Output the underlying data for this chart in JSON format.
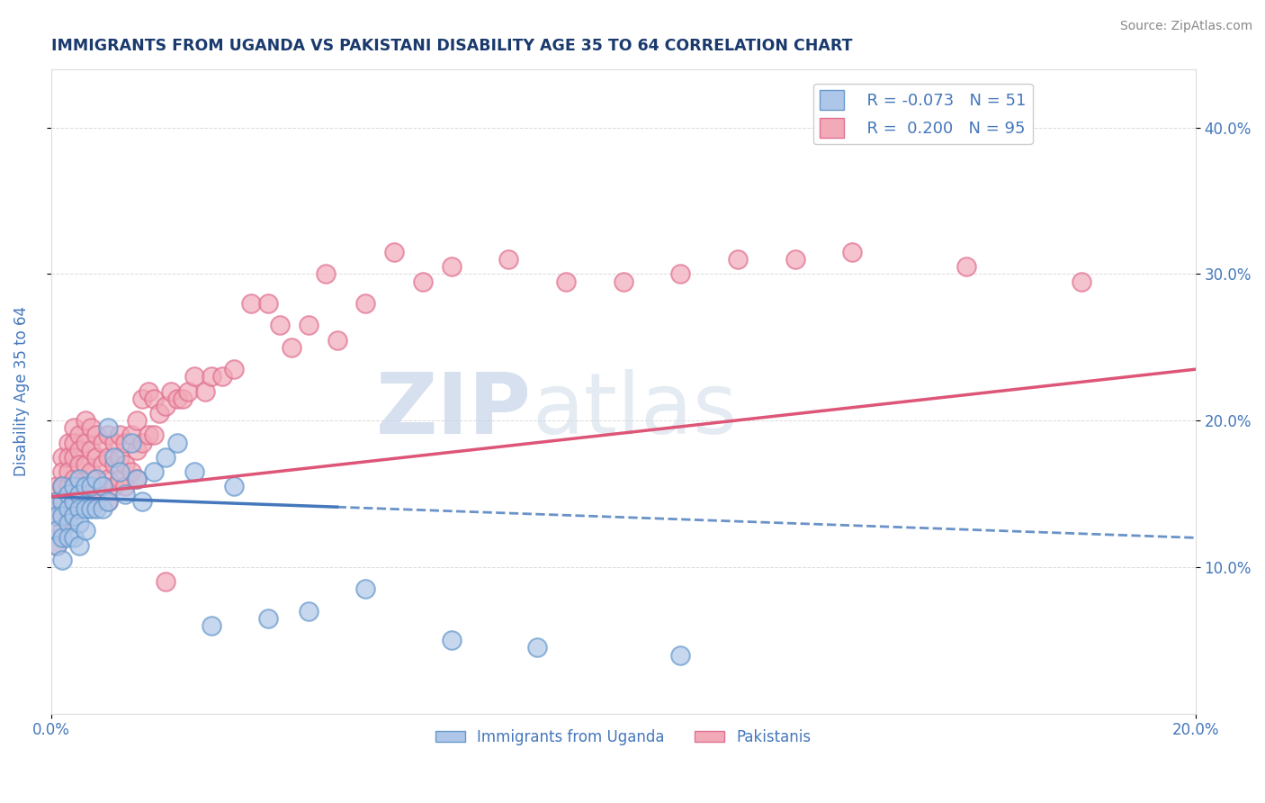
{
  "title": "IMMIGRANTS FROM UGANDA VS PAKISTANI DISABILITY AGE 35 TO 64 CORRELATION CHART",
  "source_text": "Source: ZipAtlas.com",
  "ylabel": "Disability Age 35 to 64",
  "right_yticks": [
    0.1,
    0.2,
    0.3,
    0.4
  ],
  "right_yticklabels": [
    "10.0%",
    "20.0%",
    "30.0%",
    "40.0%"
  ],
  "xmin": 0.0,
  "xmax": 0.2,
  "ymin": 0.0,
  "ymax": 0.44,
  "uganda_R": -0.073,
  "uganda_N": 51,
  "pakistan_R": 0.2,
  "pakistan_N": 95,
  "uganda_color": "#aec6e8",
  "pakistan_color": "#f2aab8",
  "uganda_edge_color": "#6699cc",
  "pakistan_edge_color": "#e07090",
  "uganda_line_color": "#4477bb",
  "pakistan_line_color": "#dd5577",
  "legend_uganda_label": "Immigrants from Uganda",
  "legend_pakistan_label": "Pakistanis",
  "background_color": "#ffffff",
  "grid_color": "#cccccc",
  "watermark_zip_color": "#c8d4e8",
  "watermark_atlas_color": "#b8c8d8",
  "title_color": "#1a3a6e",
  "source_color": "#888888",
  "axis_label_color": "#4477bb",
  "uganda_x": [
    0.001,
    0.001,
    0.001,
    0.001,
    0.002,
    0.002,
    0.002,
    0.002,
    0.002,
    0.003,
    0.003,
    0.003,
    0.003,
    0.004,
    0.004,
    0.004,
    0.004,
    0.005,
    0.005,
    0.005,
    0.005,
    0.005,
    0.006,
    0.006,
    0.006,
    0.007,
    0.007,
    0.008,
    0.008,
    0.009,
    0.009,
    0.01,
    0.01,
    0.011,
    0.012,
    0.013,
    0.014,
    0.015,
    0.016,
    0.018,
    0.02,
    0.022,
    0.025,
    0.028,
    0.032,
    0.038,
    0.045,
    0.055,
    0.07,
    0.085,
    0.11
  ],
  "uganda_y": [
    0.145,
    0.135,
    0.125,
    0.115,
    0.155,
    0.145,
    0.135,
    0.12,
    0.105,
    0.15,
    0.14,
    0.13,
    0.12,
    0.155,
    0.145,
    0.135,
    0.12,
    0.16,
    0.15,
    0.14,
    0.13,
    0.115,
    0.155,
    0.14,
    0.125,
    0.155,
    0.14,
    0.16,
    0.14,
    0.155,
    0.14,
    0.195,
    0.145,
    0.175,
    0.165,
    0.15,
    0.185,
    0.16,
    0.145,
    0.165,
    0.175,
    0.185,
    0.165,
    0.06,
    0.155,
    0.065,
    0.07,
    0.085,
    0.05,
    0.045,
    0.04
  ],
  "pakistan_x": [
    0.001,
    0.001,
    0.001,
    0.001,
    0.002,
    0.002,
    0.002,
    0.002,
    0.002,
    0.003,
    0.003,
    0.003,
    0.003,
    0.003,
    0.004,
    0.004,
    0.004,
    0.004,
    0.004,
    0.005,
    0.005,
    0.005,
    0.005,
    0.005,
    0.006,
    0.006,
    0.006,
    0.006,
    0.007,
    0.007,
    0.007,
    0.007,
    0.008,
    0.008,
    0.008,
    0.008,
    0.009,
    0.009,
    0.009,
    0.01,
    0.01,
    0.01,
    0.01,
    0.011,
    0.011,
    0.011,
    0.012,
    0.012,
    0.012,
    0.013,
    0.013,
    0.013,
    0.014,
    0.014,
    0.015,
    0.015,
    0.015,
    0.016,
    0.016,
    0.017,
    0.017,
    0.018,
    0.018,
    0.019,
    0.02,
    0.021,
    0.022,
    0.023,
    0.024,
    0.025,
    0.027,
    0.028,
    0.03,
    0.032,
    0.035,
    0.038,
    0.04,
    0.042,
    0.045,
    0.048,
    0.05,
    0.055,
    0.06,
    0.065,
    0.07,
    0.08,
    0.09,
    0.1,
    0.11,
    0.12,
    0.13,
    0.14,
    0.16,
    0.18,
    0.02
  ],
  "pakistan_y": [
    0.155,
    0.145,
    0.135,
    0.115,
    0.175,
    0.165,
    0.155,
    0.145,
    0.125,
    0.185,
    0.175,
    0.165,
    0.155,
    0.135,
    0.195,
    0.185,
    0.175,
    0.16,
    0.14,
    0.19,
    0.18,
    0.17,
    0.155,
    0.14,
    0.2,
    0.185,
    0.17,
    0.155,
    0.195,
    0.18,
    0.165,
    0.15,
    0.19,
    0.175,
    0.16,
    0.145,
    0.185,
    0.17,
    0.155,
    0.19,
    0.175,
    0.16,
    0.145,
    0.185,
    0.17,
    0.155,
    0.19,
    0.175,
    0.16,
    0.185,
    0.17,
    0.155,
    0.19,
    0.165,
    0.2,
    0.18,
    0.16,
    0.215,
    0.185,
    0.22,
    0.19,
    0.215,
    0.19,
    0.205,
    0.21,
    0.22,
    0.215,
    0.215,
    0.22,
    0.23,
    0.22,
    0.23,
    0.23,
    0.235,
    0.28,
    0.28,
    0.265,
    0.25,
    0.265,
    0.3,
    0.255,
    0.28,
    0.315,
    0.295,
    0.305,
    0.31,
    0.295,
    0.295,
    0.3,
    0.31,
    0.31,
    0.315,
    0.305,
    0.295,
    0.09
  ],
  "uganda_trend_x": [
    0.0,
    0.2
  ],
  "uganda_trend_y": [
    0.148,
    0.12
  ],
  "pakistan_trend_x": [
    0.0,
    0.2
  ],
  "pakistan_trend_y": [
    0.148,
    0.235
  ]
}
